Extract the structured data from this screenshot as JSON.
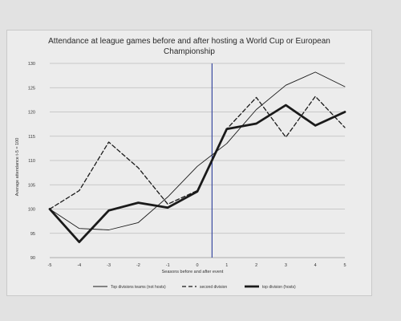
{
  "chart_data": {
    "type": "line",
    "title_lines": [
      "Attendance at league games before and after hosting a World Cup or European",
      "Championship"
    ],
    "xlabel": "Seasons before and after event",
    "ylabel": "Average attendance t-5 = 100",
    "x": [
      -5,
      -4,
      -3,
      -2,
      -1,
      0,
      1,
      2,
      3,
      4,
      5
    ],
    "x_tick_labels": [
      "-5",
      "-4",
      "-3",
      "-2",
      "-1",
      "0",
      "1",
      "2",
      "3",
      "4",
      "5"
    ],
    "ylim": [
      90,
      130
    ],
    "y_ticks": [
      90,
      95,
      100,
      105,
      110,
      115,
      120,
      125,
      130
    ],
    "y_tick_labels": [
      "90",
      "95",
      "100",
      "105",
      "110",
      "115",
      "120",
      "125",
      "130"
    ],
    "grid": "horizontal",
    "event_marker_x": 0.5,
    "legend_position": "bottom",
    "series": [
      {
        "name": "Top divisions teams (not hosts)",
        "style": "thin",
        "values": [
          100,
          96,
          95.7,
          97.2,
          102.5,
          108.8,
          113.5,
          120.5,
          125.5,
          128.2,
          125.2
        ]
      },
      {
        "name": "second division",
        "style": "dashed",
        "values": [
          100,
          103.8,
          113.8,
          108.5,
          101,
          103.8,
          116.5,
          123,
          114.8,
          123.2,
          116.8
        ]
      },
      {
        "name": "top division (hosts)",
        "style": "thick",
        "values": [
          100,
          93.2,
          99.7,
          101.3,
          100.3,
          103.6,
          116.5,
          117.6,
          121.4,
          117.2,
          120
        ]
      }
    ],
    "colors": {
      "line": "#1a1a1a",
      "grid": "#bdbdbd",
      "axis": "#999999",
      "event_marker": "#3a4aa0"
    }
  }
}
